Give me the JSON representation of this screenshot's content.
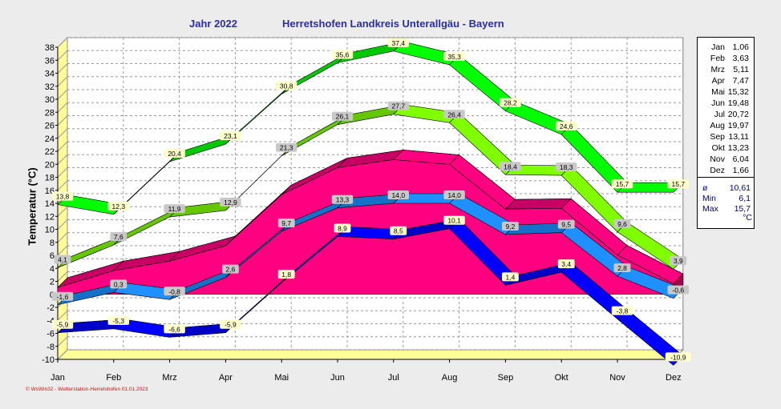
{
  "header": {
    "year": "Jahr  2022",
    "place": "Herretshofen Landkreis Unterallgäu - Bayern"
  },
  "footer": "© WsWin32 - Wetterstation-Herretshofen  01.01.2023",
  "chart_data": {
    "type": "area",
    "categories": [
      "Jan",
      "Feb",
      "Mrz",
      "Apr",
      "Mai",
      "Jun",
      "Jul",
      "Aug",
      "Sep",
      "Okt",
      "Nov",
      "Dez"
    ],
    "ylabel": "Temperatur  (°C)",
    "ylim": [
      -10,
      38
    ],
    "yticks": [
      -10,
      -8,
      -6,
      -4,
      -2,
      0,
      2,
      4,
      6,
      8,
      10,
      12,
      14,
      16,
      18,
      20,
      22,
      24,
      26,
      28,
      30,
      32,
      34,
      36,
      38
    ],
    "grid": true,
    "legend_position": "right",
    "series": [
      {
        "name": "max",
        "values": [
          13.8,
          12.3,
          20.4,
          23.1,
          30.8,
          35.6,
          37.4,
          35.3,
          28.2,
          24.6,
          15.7,
          15.7
        ],
        "labels": [
          "13,8",
          "12,3",
          "20,4",
          "23,1",
          "30,8",
          "35,6",
          "37,4",
          "35,3",
          "28,2",
          "24,6",
          "15,7",
          "15,7"
        ],
        "color": "#00ff00"
      },
      {
        "name": "mean_max",
        "values": [
          4.1,
          7.6,
          11.9,
          12.9,
          21.3,
          26.1,
          27.7,
          26.4,
          18.4,
          18.3,
          9.6,
          3.9
        ],
        "labels": [
          "4,1",
          "7,6",
          "11,9",
          "12,9",
          "21,3",
          "26,1",
          "27,7",
          "26,4",
          "18,4",
          "18,3",
          "9,6",
          "3,9"
        ],
        "color": "#80ff00"
      },
      {
        "name": "mean",
        "values": [
          1.06,
          3.63,
          5.11,
          7.47,
          15.32,
          19.48,
          20.72,
          19.97,
          13.11,
          13.23,
          6.04,
          1.66
        ],
        "color": "#ff0080"
      },
      {
        "name": "mean_min",
        "values": [
          -1.6,
          0.3,
          -0.8,
          2.6,
          9.7,
          13.3,
          14.0,
          14.0,
          9.2,
          9.5,
          2.8,
          -0.6
        ],
        "labels": [
          "-1,6",
          "0,3",
          "-0,8",
          "2,6",
          "9,7",
          "13,3",
          "14,0",
          "14,0",
          "9,2",
          "9,5",
          "2,8",
          "-0,6"
        ],
        "color": "#1e90ff"
      },
      {
        "name": "min",
        "values": [
          -5.9,
          -5.3,
          -6.6,
          -5.9,
          1.8,
          8.9,
          8.5,
          10.1,
          1.4,
          3.4,
          -3.8,
          -10.9
        ],
        "labels": [
          "-5,9",
          "-5,3",
          "-6,6",
          "-5,9",
          "1,8",
          "8,9",
          "8,5",
          "10,1",
          "1,4",
          "3,4",
          "-3,8",
          "-10,9"
        ],
        "color": "#0000ff"
      }
    ]
  },
  "legend": {
    "months": [
      {
        "m": "Jan",
        "v": "1,06"
      },
      {
        "m": "Feb",
        "v": "3,63"
      },
      {
        "m": "Mrz",
        "v": "5,11"
      },
      {
        "m": "Apr",
        "v": "7,47"
      },
      {
        "m": "Mai",
        "v": "15,32"
      },
      {
        "m": "Jun",
        "v": "19,48"
      },
      {
        "m": "Jul",
        "v": "20,72"
      },
      {
        "m": "Aug",
        "v": "19,97"
      },
      {
        "m": "Sep",
        "v": "13,11"
      },
      {
        "m": "Okt",
        "v": "13,23"
      },
      {
        "m": "Nov",
        "v": "6,04"
      },
      {
        "m": "Dez",
        "v": "1,66"
      }
    ],
    "stats": [
      {
        "k": "ø",
        "v": "10,61"
      },
      {
        "k": "Min",
        "v": "6,1"
      },
      {
        "k": "Max",
        "v": "15,7"
      }
    ],
    "unit": "°C"
  }
}
